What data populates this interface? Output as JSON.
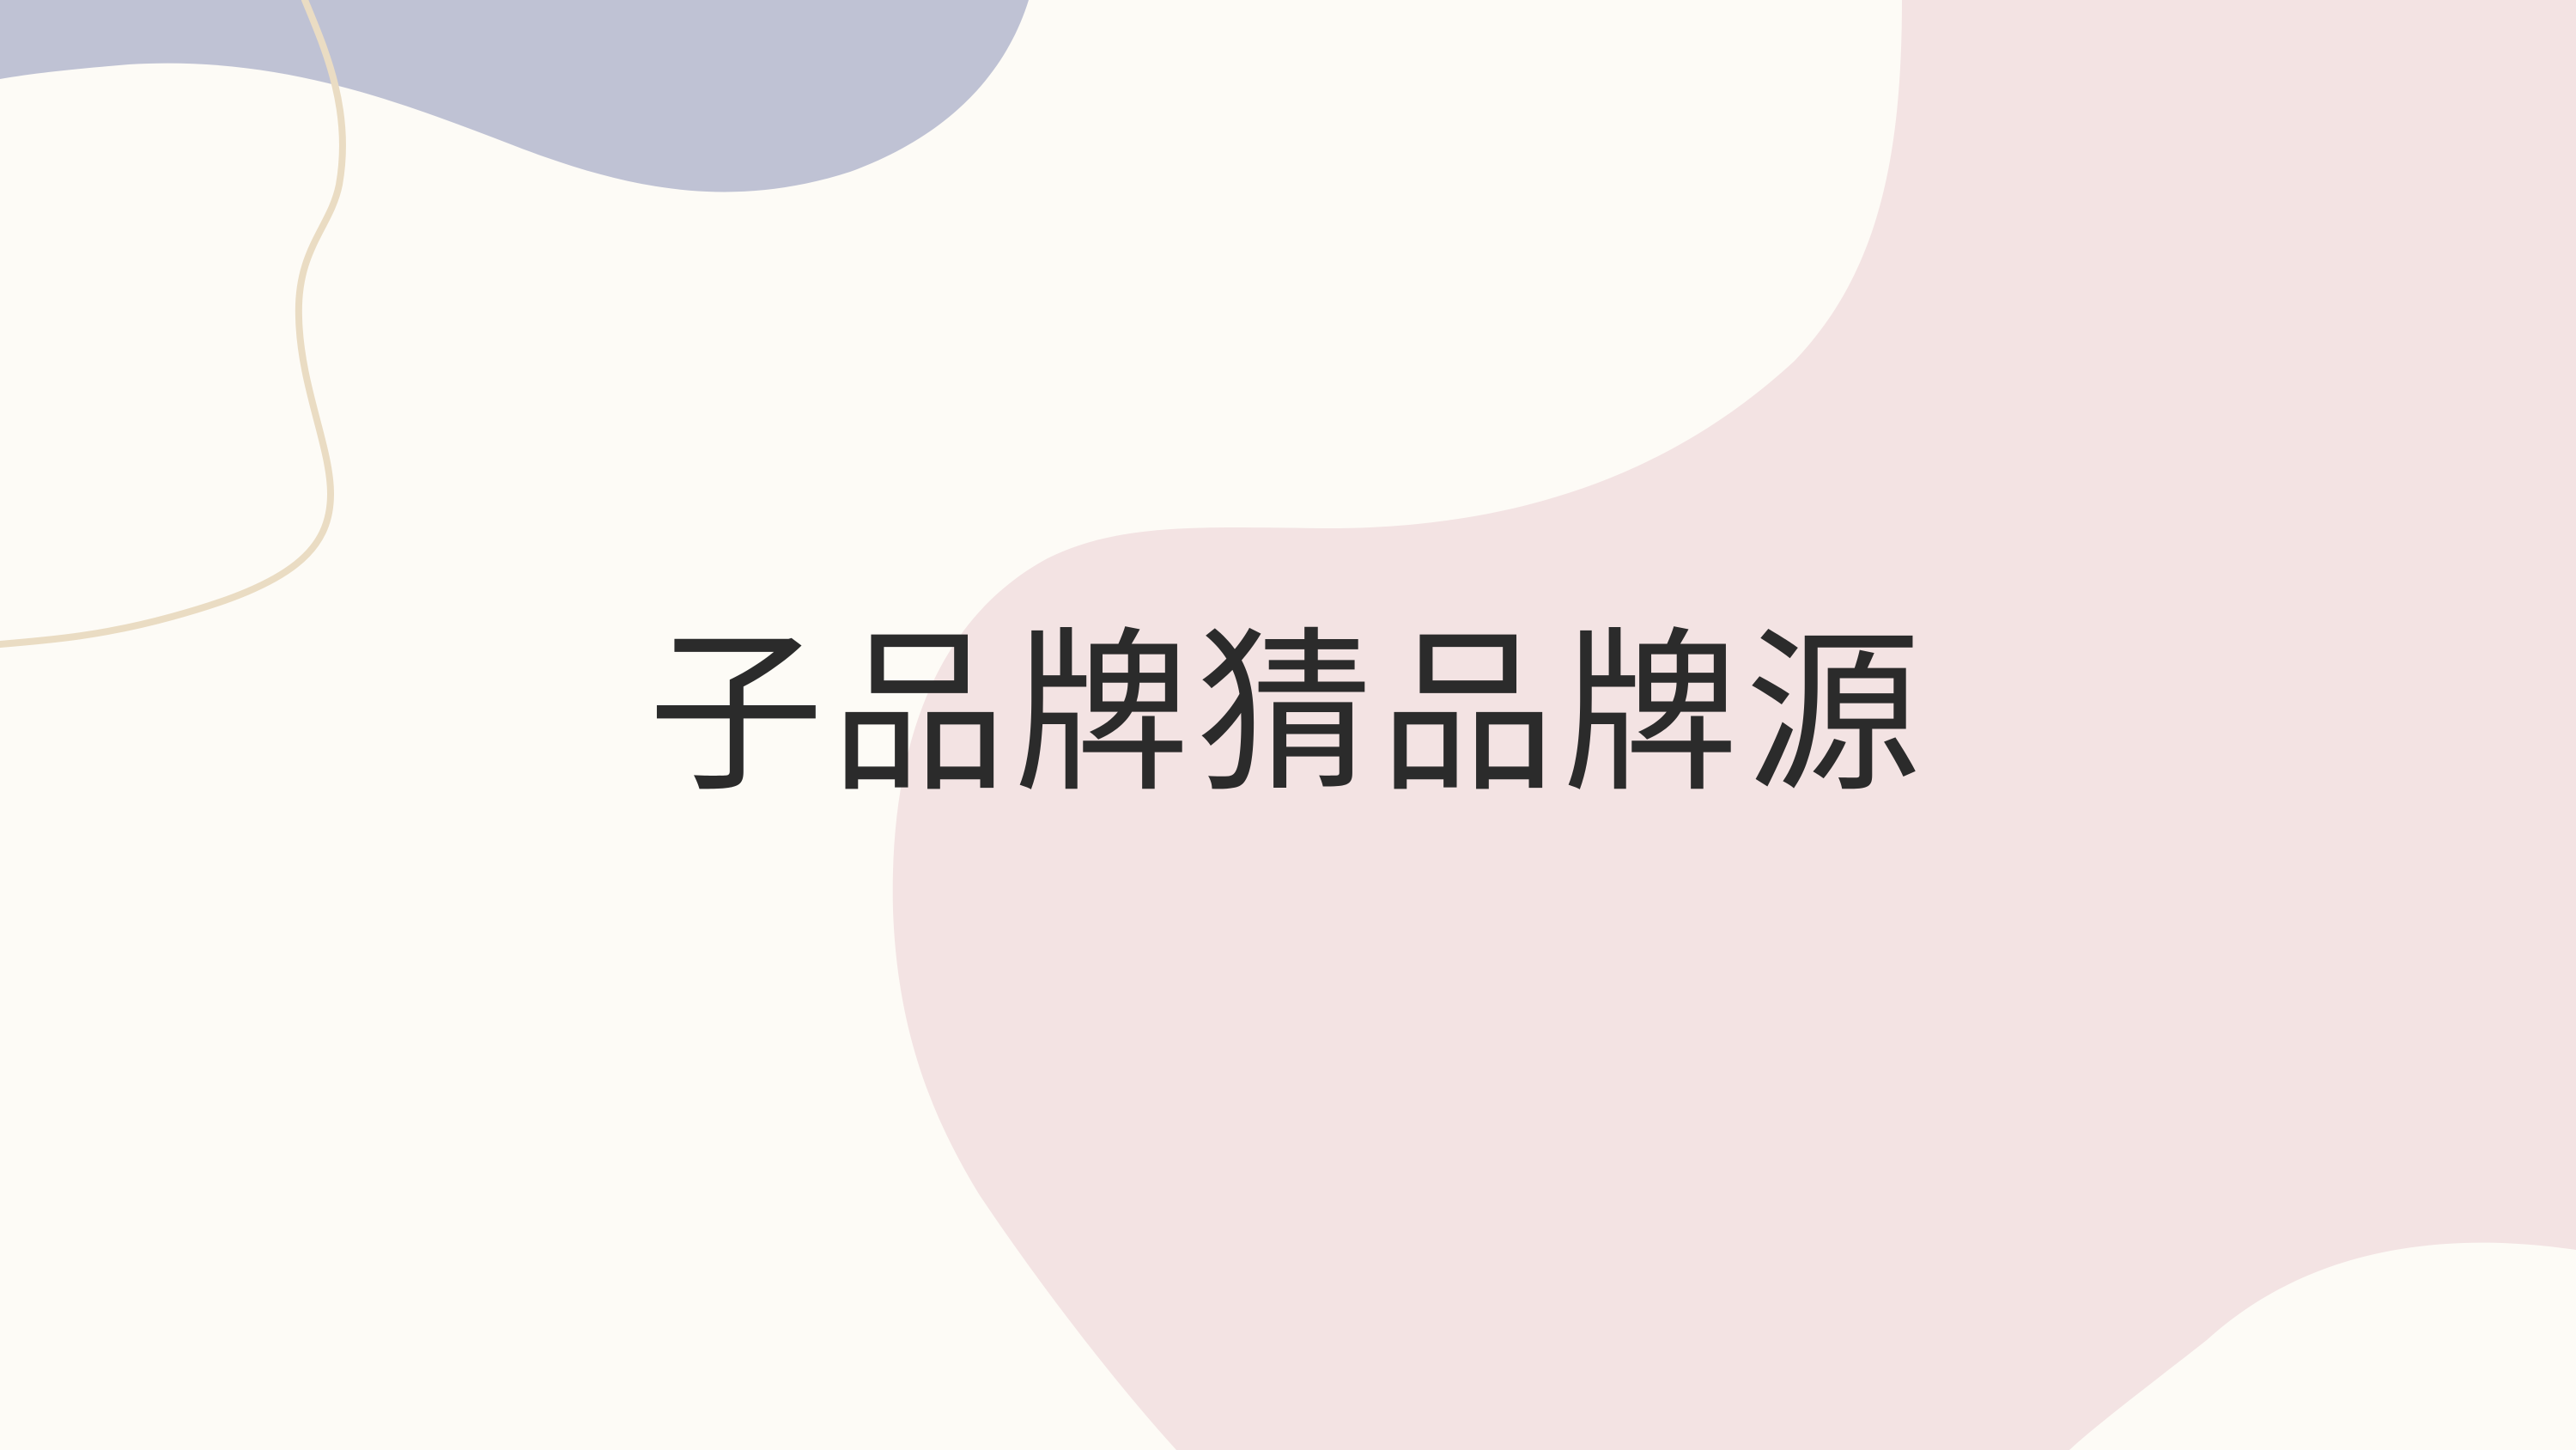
{
  "slide": {
    "title": "子品牌猜品牌源"
  },
  "colors": {
    "background": "#fdfbf6",
    "blob_blue": "#bfc2d4",
    "blob_pink": "#f3e3e3",
    "line_tan": "#eadcc3",
    "title_text": "#2b2b2b"
  }
}
